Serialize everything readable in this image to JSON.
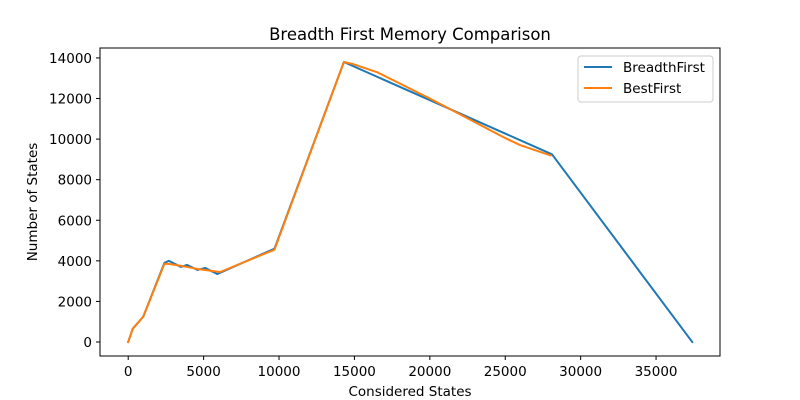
{
  "chart_data": {
    "type": "line",
    "title": "Breadth First Memory Comparison",
    "xlabel": "Considered States",
    "ylabel": "Number of States",
    "xlim": [
      -1870,
      39240
    ],
    "ylim": [
      -690,
      14490
    ],
    "xticks": [
      0,
      5000,
      10000,
      15000,
      20000,
      25000,
      30000,
      35000
    ],
    "yticks": [
      0,
      2000,
      4000,
      6000,
      8000,
      10000,
      12000,
      14000
    ],
    "grid": false,
    "legend_position": "top-right",
    "series": [
      {
        "name": "BreadthFirst",
        "color": "#1f77b4",
        "x": [
          0,
          300,
          1000,
          2400,
          2700,
          3500,
          3900,
          4600,
          5100,
          5900,
          9700,
          14300,
          28100,
          37400
        ],
        "y": [
          0,
          650,
          1250,
          3900,
          4000,
          3700,
          3800,
          3550,
          3650,
          3350,
          4600,
          13800,
          9250,
          0
        ]
      },
      {
        "name": "BestFirst",
        "color": "#ff7f0e",
        "x": [
          0,
          300,
          1000,
          2400,
          2700,
          3500,
          3900,
          4600,
          5100,
          6100,
          9700,
          14300,
          14900,
          16500,
          20000,
          25000,
          26000,
          28000
        ],
        "y": [
          0,
          650,
          1250,
          3850,
          3850,
          3750,
          3700,
          3600,
          3550,
          3450,
          4550,
          13800,
          13700,
          13300,
          12000,
          10050,
          9700,
          9200
        ]
      }
    ]
  }
}
